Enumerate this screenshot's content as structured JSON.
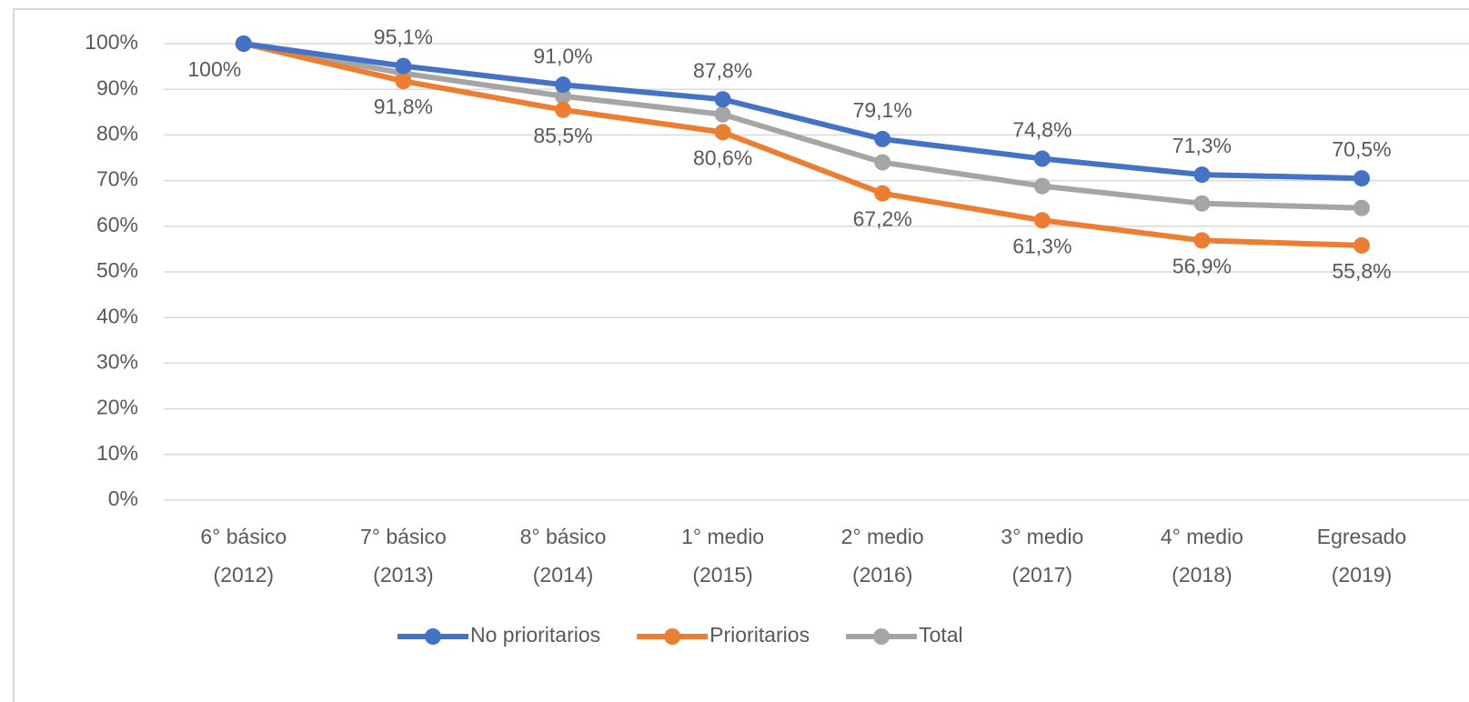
{
  "chart_data": {
    "type": "line",
    "categories": [
      [
        "6° básico",
        "(2012)"
      ],
      [
        "7° básico",
        "(2013)"
      ],
      [
        "8° básico",
        "(2014)"
      ],
      [
        "1° medio",
        "(2015)"
      ],
      [
        "2° medio",
        "(2016)"
      ],
      [
        "3° medio",
        "(2017)"
      ],
      [
        "4° medio",
        "(2018)"
      ],
      [
        "Egresado",
        "(2019)"
      ]
    ],
    "series": [
      {
        "name": "No prioritarios",
        "color": "#4472c4",
        "label_side": "above",
        "values": [
          100,
          95.1,
          91.0,
          87.8,
          79.1,
          74.8,
          71.3,
          70.5
        ],
        "value_labels": [
          null,
          "95,1%",
          "91,0%",
          "87,8%",
          "79,1%",
          "74,8%",
          "71,3%",
          "70,5%"
        ]
      },
      {
        "name": "Prioritarios",
        "color": "#ed7d31",
        "label_side": "below",
        "values": [
          100,
          91.8,
          85.5,
          80.6,
          67.2,
          61.3,
          56.9,
          55.8
        ],
        "value_labels": [
          "100%",
          "91,8%",
          "85,5%",
          "80,6%",
          "67,2%",
          "61,3%",
          "56,9%",
          "55,8%"
        ]
      },
      {
        "name": "Total",
        "color": "#a5a5a5",
        "values": [
          100,
          93.5,
          88.5,
          84.5,
          74,
          68.8,
          65,
          64
        ]
      }
    ],
    "ylim": [
      0,
      100
    ],
    "yticks": [
      {
        "value": 0,
        "label": "0%"
      },
      {
        "value": 10,
        "label": "10%"
      },
      {
        "value": 20,
        "label": "20%"
      },
      {
        "value": 30,
        "label": "30%"
      },
      {
        "value": 40,
        "label": "40%"
      },
      {
        "value": 50,
        "label": "50%"
      },
      {
        "value": 60,
        "label": "60%"
      },
      {
        "value": 70,
        "label": "70%"
      },
      {
        "value": 80,
        "label": "80%"
      },
      {
        "value": 90,
        "label": "90%"
      },
      {
        "value": 100,
        "label": "100%"
      }
    ],
    "grid": true,
    "legend": "bottom"
  }
}
